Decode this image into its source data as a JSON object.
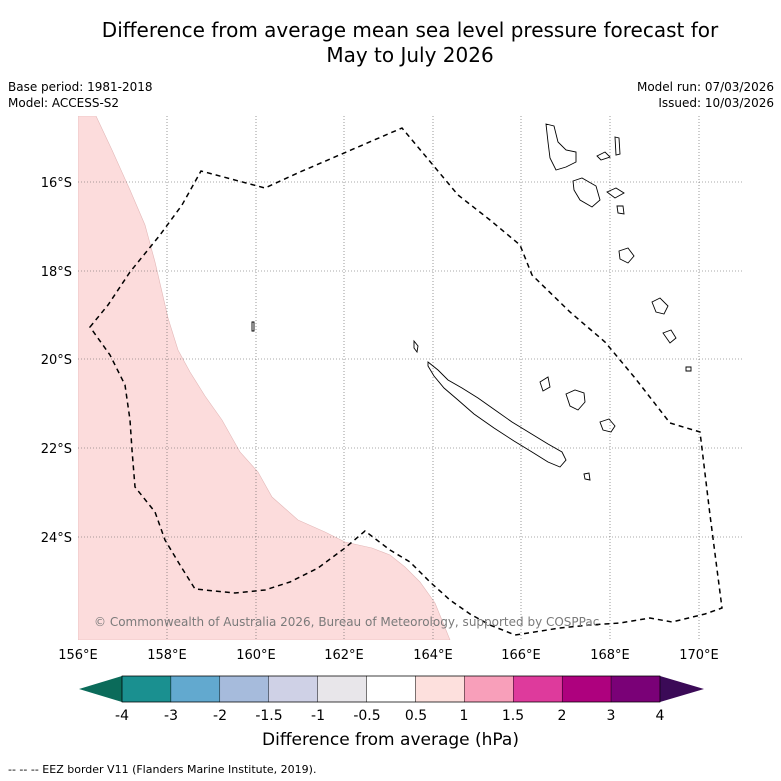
{
  "header": {
    "title_line1": "Difference from average mean sea level pressure forecast for",
    "title_line2": "May to July 2026",
    "base_period": "Base period: 1981-2018",
    "model": "Model: ACCESS-S2",
    "model_run": "Model run: 07/03/2026",
    "issued": "Issued: 10/03/2026"
  },
  "map": {
    "lon_labels": [
      "156°E",
      "158°E",
      "160°E",
      "162°E",
      "164°E",
      "166°E",
      "168°E",
      "170°E"
    ],
    "lat_labels": [
      "16°S",
      "18°S",
      "20°S",
      "22°S",
      "24°S"
    ],
    "copyright": "© Commonwealth of Australia 2026, Bureau of Meteorology, supported by COSPPac",
    "anomaly_fill_color": "#fcdcdc"
  },
  "colorbar": {
    "title": "Difference from average (hPa)",
    "tick_labels": [
      "-4",
      "-3",
      "-2",
      "-1.5",
      "-1",
      "-0.5",
      "0.5",
      "1",
      "1.5",
      "2",
      "3",
      "4"
    ],
    "under_color": "#0b6b5a",
    "over_color": "#3b0a57",
    "colors": [
      "#1a9090",
      "#62a9cf",
      "#a6bbdc",
      "#cfd1e6",
      "#e8e6ea",
      "#ffffff",
      "#fde0dd",
      "#f89fba",
      "#de3a9c",
      "#ae017e",
      "#7a0177"
    ]
  },
  "footnote": "--  --  -- EEZ border V11 (Flanders Marine Institute, 2019)."
}
